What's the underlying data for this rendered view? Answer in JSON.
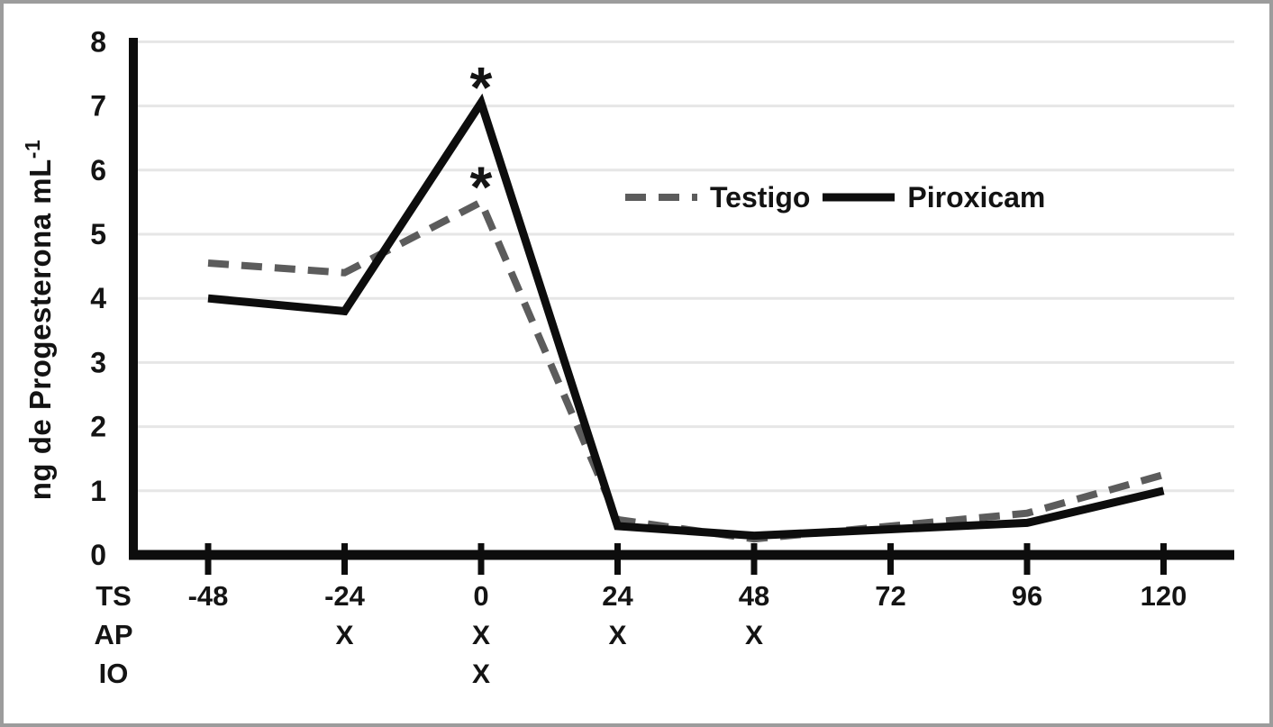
{
  "chart_data": {
    "type": "line",
    "title": "",
    "ylabel": "ng de Progesterona mL",
    "ylabel_sup": "-1",
    "xlabel": "",
    "x_row_label": "TS",
    "categories": [
      "-48",
      "-24",
      "0",
      "24",
      "48",
      "72",
      "96",
      "120"
    ],
    "y_tick_labels": [
      "0",
      "1",
      "2",
      "3",
      "4",
      "5",
      "6",
      "7",
      "8"
    ],
    "ylim": [
      0,
      8
    ],
    "grid": "horizontal",
    "grid_color": "#e6e6e6",
    "axis_color": "#0d0d0d",
    "text_color": "#141414",
    "legend_position": "inside-upper-right",
    "series": [
      {
        "name": "Testigo",
        "style": "dashed",
        "color": "#5c5c5c",
        "values": [
          4.55,
          4.4,
          5.5,
          0.55,
          0.25,
          0.45,
          0.65,
          1.25
        ]
      },
      {
        "name": "Piroxicam",
        "style": "solid",
        "color": "#0d0d0d",
        "values": [
          4.0,
          3.8,
          7.05,
          0.45,
          0.3,
          0.4,
          0.5,
          1.0
        ]
      }
    ],
    "annotations": [
      {
        "text": "*",
        "series": "Piroxicam",
        "category": "0"
      },
      {
        "text": "*",
        "series": "Testigo",
        "category": "0"
      }
    ],
    "treatment_rows": [
      {
        "label": "AP",
        "marks": [
          "",
          "X",
          "X",
          "X",
          "X",
          "",
          "",
          ""
        ]
      },
      {
        "label": "IO",
        "marks": [
          "",
          "",
          "X",
          "",
          "",
          "",
          "",
          ""
        ]
      }
    ]
  }
}
